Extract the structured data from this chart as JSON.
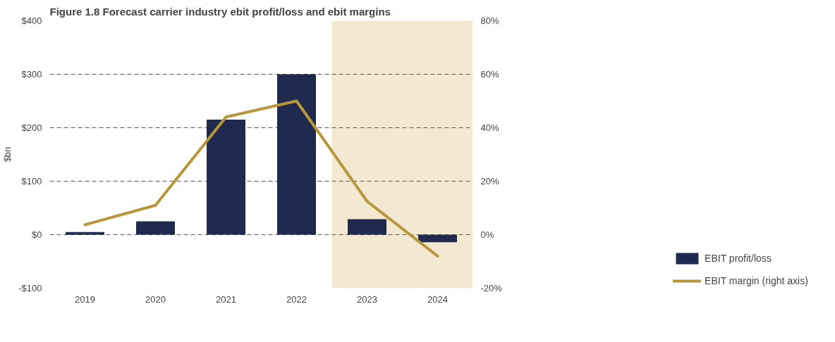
{
  "chart_data": {
    "type": "bar",
    "title": "Figure 1.8  Forecast carrier industry ebit profit/loss and ebit margins",
    "ylabel": "$bn",
    "categories": [
      "2019",
      "2020",
      "2021",
      "2022",
      "2023",
      "2024"
    ],
    "series": [
      {
        "name": "EBIT profit/loss",
        "color": "#1f2a4e",
        "values": [
          5,
          25,
          215,
          300,
          29,
          -14
        ]
      },
      {
        "name": "EBIT margin (right axis)",
        "type": "line",
        "axis": "y2",
        "color": "#b8963a",
        "values": [
          3.7,
          11,
          44,
          50,
          12.5,
          -8
        ]
      }
    ],
    "ylim": [
      -100,
      400
    ],
    "yticks": [
      {
        "value": -100,
        "label": "-$100"
      },
      {
        "value": 0,
        "label": "$0"
      },
      {
        "value": 100,
        "label": "$100"
      },
      {
        "value": 200,
        "label": "$200"
      },
      {
        "value": 300,
        "label": "$300"
      },
      {
        "value": 400,
        "label": "$400"
      }
    ],
    "y2lim": [
      -20,
      80
    ],
    "y2ticks": [
      {
        "value": -20,
        "label": "-20%"
      },
      {
        "value": 0,
        "label": "0%"
      },
      {
        "value": 20,
        "label": "20%"
      },
      {
        "value": 40,
        "label": "40%"
      },
      {
        "value": 60,
        "label": "60%"
      },
      {
        "value": 80,
        "label": "80%"
      }
    ],
    "bands": [
      {
        "axis": "x",
        "from": "2023",
        "to": "2024",
        "color": "#f3e8d2"
      }
    ],
    "grid": "y",
    "legend": "bottom right",
    "line_style": "solid",
    "marker": "none"
  }
}
